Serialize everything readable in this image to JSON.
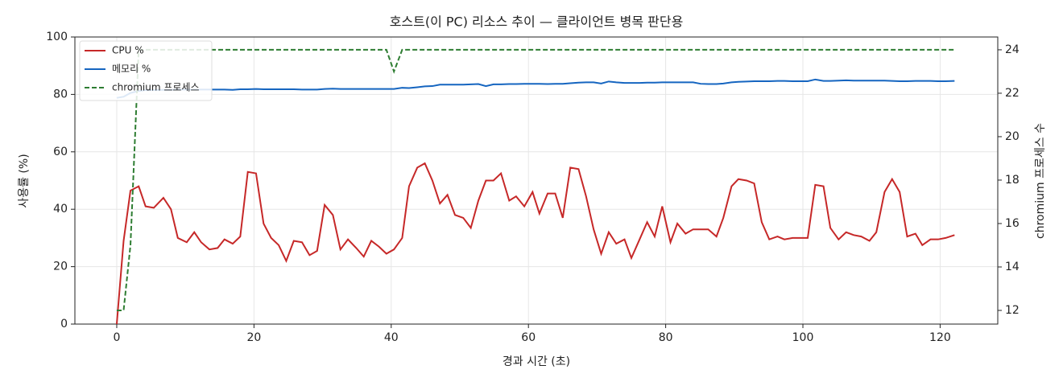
{
  "chart_data": {
    "type": "line",
    "title": "호스트(이 PC) 리소스 추이 — 클라이언트 병목 판단용",
    "xlabel": "경과 시간 (초)",
    "ylabel": "사용률 (%)",
    "y2label": "chromium 프로세스 수",
    "x": [
      0,
      1,
      2,
      3.2,
      4.2,
      5.4,
      6.8,
      7.9,
      8.9,
      10.2,
      11.3,
      12.3,
      13.5,
      14.7,
      15.7,
      16.9,
      18,
      19.1,
      20.3,
      21.4,
      22.5,
      23.6,
      24.7,
      25.8,
      27,
      28.1,
      29.2,
      30.3,
      31.5,
      32.6,
      33.7,
      34.9,
      36,
      37.1,
      38.2,
      39.3,
      40.4,
      41.6,
      42.6,
      43.8,
      44.9,
      46,
      47.1,
      48.2,
      49.3,
      50.5,
      51.6,
      52.7,
      53.8,
      54.9,
      56,
      57.2,
      58.2,
      59.4,
      60.6,
      61.6,
      62.8,
      63.9,
      65,
      66.1,
      67.3,
      68.4,
      69.5,
      70.6,
      71.7,
      72.8,
      74,
      75,
      76.2,
      77.3,
      78.4,
      79.5,
      80.7,
      81.7,
      82.9,
      84,
      85.1,
      86.2,
      87.4,
      88.4,
      89.6,
      90.6,
      91.8,
      92.9,
      94,
      95.1,
      96.3,
      97.3,
      98.5,
      99.6,
      100.7,
      101.8,
      103,
      104,
      105.2,
      106.3,
      107.4,
      108.5,
      109.7,
      110.7,
      111.9,
      113,
      114.1,
      115.2,
      116.4,
      117.4,
      118.6,
      119.7,
      120.8,
      122.1
    ],
    "series": [
      {
        "name": "CPU %",
        "color": "#c62828",
        "axis": "y",
        "dash": false,
        "values": [
          0,
          29,
          46.5,
          48,
          41,
          40.5,
          44,
          40,
          30,
          28.5,
          32,
          28.5,
          26,
          26.5,
          29.5,
          28,
          30.5,
          53,
          52.5,
          35,
          30,
          27.5,
          22,
          29,
          28.5,
          24,
          25.5,
          41.5,
          38,
          26,
          29.5,
          26.5,
          23.5,
          29,
          27,
          24.5,
          26,
          30,
          48,
          54.5,
          56,
          50,
          42,
          45,
          38,
          37,
          33.5,
          43,
          50,
          50,
          52.5,
          43,
          44.5,
          41,
          46,
          38.5,
          45.5,
          45.5,
          37,
          54.5,
          54,
          44.5,
          33,
          24.5,
          32,
          28,
          29.5,
          23,
          29.5,
          35.5,
          30.5,
          41,
          28.5,
          35,
          31.5,
          33,
          33,
          33,
          30.5,
          37,
          48,
          50.5,
          50,
          49,
          35.5,
          29.5,
          30.5,
          29.5,
          30,
          30,
          30,
          48.5,
          48,
          33.5,
          29.5,
          32,
          31,
          30.5,
          29,
          32,
          46,
          50.5,
          46,
          30.5,
          31.5,
          27.5,
          29.5,
          29.5,
          30,
          31
        ]
      },
      {
        "name": "메모리 %",
        "color": "#1565c0",
        "axis": "y",
        "dash": false,
        "values": [
          78.8,
          79.2,
          80.5,
          81.2,
          81.5,
          81.5,
          81.6,
          81.6,
          81.7,
          81.7,
          81.7,
          81.7,
          81.7,
          81.7,
          81.7,
          81.6,
          81.8,
          81.8,
          81.9,
          81.8,
          81.8,
          81.8,
          81.8,
          81.8,
          81.7,
          81.7,
          81.7,
          81.9,
          82,
          81.9,
          81.9,
          81.9,
          81.9,
          81.9,
          81.9,
          81.9,
          81.9,
          82.3,
          82.2,
          82.5,
          82.8,
          82.9,
          83.4,
          83.4,
          83.4,
          83.4,
          83.5,
          83.6,
          82.9,
          83.5,
          83.5,
          83.6,
          83.6,
          83.7,
          83.7,
          83.7,
          83.6,
          83.7,
          83.7,
          83.9,
          84.1,
          84.2,
          84.2,
          83.8,
          84.5,
          84.2,
          84,
          84,
          84,
          84.1,
          84.1,
          84.2,
          84.2,
          84.2,
          84.2,
          84.2,
          83.7,
          83.6,
          83.6,
          83.8,
          84.2,
          84.4,
          84.5,
          84.6,
          84.6,
          84.6,
          84.7,
          84.7,
          84.6,
          84.6,
          84.6,
          85.2,
          84.7,
          84.7,
          84.8,
          84.9,
          84.8,
          84.8,
          84.8,
          84.8,
          84.8,
          84.7,
          84.6,
          84.6,
          84.7,
          84.7,
          84.7,
          84.6,
          84.6,
          84.7
        ]
      },
      {
        "name": "chromium 프로세스",
        "color": "#2e7d32",
        "axis": "y2",
        "dash": true,
        "values": [
          12,
          12,
          15,
          24,
          24,
          24,
          24,
          24,
          24,
          24,
          24,
          24,
          24,
          24,
          24,
          24,
          24,
          24,
          24,
          24,
          24,
          24,
          24,
          24,
          24,
          24,
          24,
          24,
          24,
          24,
          24,
          24,
          24,
          24,
          24,
          24,
          23,
          24,
          24,
          24,
          24,
          24,
          24,
          24,
          24,
          24,
          24,
          24,
          24,
          24,
          24,
          24,
          24,
          24,
          24,
          24,
          24,
          24,
          24,
          24,
          24,
          24,
          24,
          24,
          24,
          24,
          24,
          24,
          24,
          24,
          24,
          24,
          24,
          24,
          24,
          24,
          24,
          24,
          24,
          24,
          24,
          24,
          24,
          24,
          24,
          24,
          24,
          24,
          24,
          24,
          24,
          24,
          24,
          24,
          24,
          24,
          24,
          24,
          24,
          24,
          24,
          24,
          24,
          24,
          24,
          24,
          24,
          24,
          24,
          24
        ]
      }
    ],
    "xlim": [
      -6.1,
      128.4
    ],
    "xticks": [
      0,
      20,
      40,
      60,
      80,
      100,
      120
    ],
    "ylim": [
      0,
      100
    ],
    "yticks": [
      0,
      20,
      40,
      60,
      80,
      100
    ],
    "y2lim": [
      11.37,
      24.59
    ],
    "y2ticks": [
      12,
      14,
      16,
      18,
      20,
      22,
      24
    ],
    "grid": true,
    "legend": "upper-left"
  }
}
